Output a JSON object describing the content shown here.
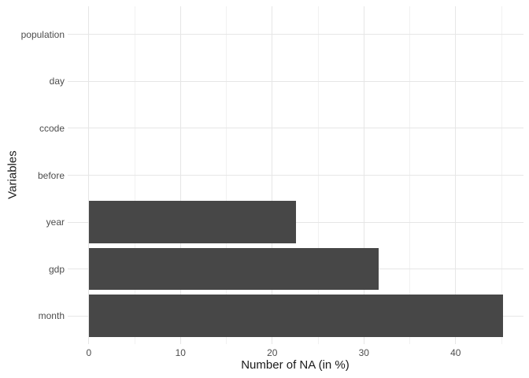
{
  "chart_data": {
    "type": "bar",
    "orientation": "horizontal",
    "title": "",
    "xlabel": "Number of NA (in %)",
    "ylabel": "Variables",
    "categories_top_to_bottom": [
      "population",
      "day",
      "ccode",
      "before",
      "year",
      "gdp",
      "month"
    ],
    "values": [
      0,
      0,
      0,
      0,
      22.6,
      31.6,
      45.2
    ],
    "x_major_ticks": [
      0,
      10,
      20,
      30,
      40
    ],
    "x_minor_ticks": [
      5,
      15,
      25,
      35,
      45
    ],
    "xlim": [
      -2.3,
      47.4
    ],
    "grid": "vertical major+minor, horizontal major at category centers",
    "legend": "none",
    "colors": {
      "bar_fill": "#474747",
      "grid_major": "#e6e6e6",
      "grid_minor": "#f1f1f1",
      "tick_label": "#4d4d4d",
      "axis_title": "#1a1a1a",
      "panel_background": "#ffffff"
    }
  }
}
